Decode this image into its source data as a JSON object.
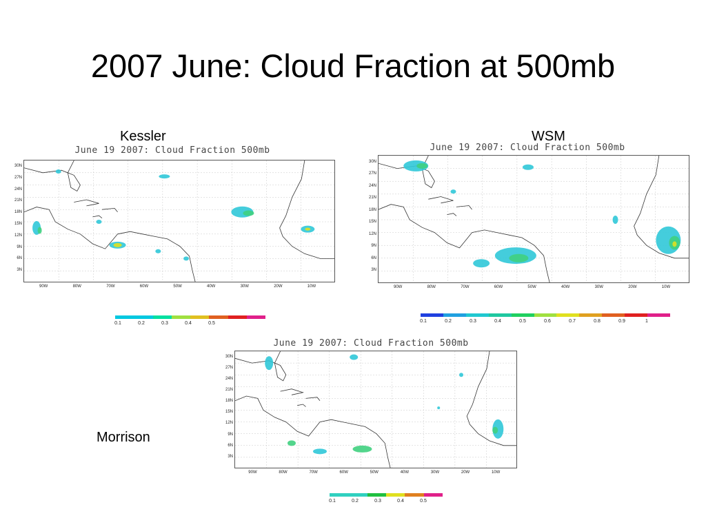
{
  "slide": {
    "title": "2007 June: Cloud Fraction at 500mb",
    "labels": {
      "kessler": "Kessler",
      "wsm": "WSM",
      "morrison": "Morrison"
    }
  },
  "panels": {
    "kessler": {
      "title": "June 19 2007: Cloud Fraction 500mb",
      "lat_labels": [
        "30N",
        "27N",
        "24N",
        "21N",
        "18N",
        "15N",
        "12N",
        "9N",
        "6N",
        "3N"
      ],
      "lon_labels": [
        "90W",
        "80W",
        "70W",
        "60W",
        "50W",
        "40W",
        "30W",
        "20W",
        "10W"
      ],
      "colorbar": {
        "colors": [
          "#00c8e0",
          "#00c8e0",
          "#00e0a0",
          "#a0e040",
          "#e0c020",
          "#e06020",
          "#e02020",
          "#e0208a"
        ],
        "labels": [
          "0.1",
          "0.2",
          "0.3",
          "0.4",
          "0.5"
        ]
      }
    },
    "wsm": {
      "title": "June 19 2007: Cloud Fraction 500mb",
      "lat_labels": [
        "30N",
        "27N",
        "24N",
        "21N",
        "18N",
        "15N",
        "12N",
        "9N",
        "6N",
        "3N"
      ],
      "lon_labels": [
        "90W",
        "80W",
        "70W",
        "60W",
        "50W",
        "40W",
        "30W",
        "20W",
        "10W"
      ],
      "colorbar": {
        "colors": [
          "#2040e0",
          "#20a0e0",
          "#20c8d0",
          "#20c8a0",
          "#20d060",
          "#a0e040",
          "#e0e020",
          "#e0a020",
          "#e06020",
          "#e02020",
          "#e0208a"
        ],
        "labels": [
          "0.1",
          "0.2",
          "0.3",
          "0.4",
          "0.5",
          "0.6",
          "0.7",
          "0.8",
          "0.9",
          "1"
        ]
      }
    },
    "morrison": {
      "title": "June 19 2007: Cloud Fraction 500mb",
      "lat_labels": [
        "30N",
        "27N",
        "24N",
        "21N",
        "18N",
        "15N",
        "12N",
        "9N",
        "6N",
        "3N"
      ],
      "lon_labels": [
        "90W",
        "80W",
        "70W",
        "60W",
        "50W",
        "40W",
        "30W",
        "20W",
        "10W"
      ],
      "colorbar": {
        "colors": [
          "#30d0c0",
          "#30d0c0",
          "#20c040",
          "#e0e020",
          "#e08020",
          "#e0208a"
        ],
        "labels": [
          "0.1",
          "0.2",
          "0.3",
          "0.4",
          "0.5"
        ]
      }
    }
  },
  "colors": {
    "coast": "#333333",
    "grid": "#c8c8c8",
    "low": "#30c8d8",
    "mid": "#40d080",
    "high": "#e0e020"
  }
}
